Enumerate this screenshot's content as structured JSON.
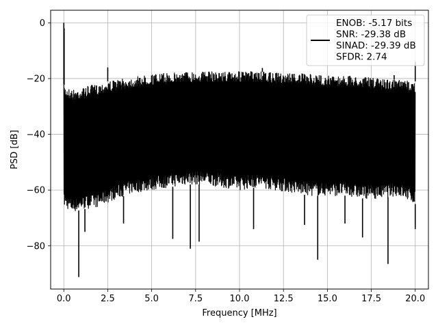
{
  "chart_data": {
    "type": "line",
    "title": "",
    "xlabel": "Frequency [MHz]",
    "ylabel": "PSD [dB]",
    "xlim": [
      -0.75,
      20.75
    ],
    "ylim": [
      -95.5,
      4.5
    ],
    "grid": true,
    "legend_position": "top-right",
    "x_ticks": [
      0.0,
      2.5,
      5.0,
      7.5,
      10.0,
      12.5,
      15.0,
      17.5,
      20.0
    ],
    "x_tick_labels": [
      "0.0",
      "2.5",
      "5.0",
      "7.5",
      "10.0",
      "12.5",
      "15.0",
      "17.5",
      "20.0"
    ],
    "y_ticks": [
      0,
      -20,
      -40,
      -60,
      -80
    ],
    "y_tick_labels": [
      "0",
      "−20",
      "−40",
      "−60",
      "−80"
    ],
    "series": [
      {
        "name": "ENOB: -5.17 bits\nSNR: -29.38 dB\nSINAD: -29.39 dB\nSFDR: 2.74",
        "color": "#000000",
        "upper_envelope": {
          "x": [
            0.0,
            0.1,
            0.5,
            1.0,
            1.5,
            2.0,
            2.5,
            3.0,
            4.0,
            5.0,
            6.0,
            7.0,
            8.0,
            9.0,
            10.0,
            11.0,
            12.0,
            13.0,
            14.0,
            15.0,
            16.0,
            17.0,
            18.0,
            19.0,
            19.9,
            20.0
          ],
          "y": [
            -22,
            -23,
            -24,
            -23.5,
            -22.5,
            -22,
            -21,
            -20.5,
            -19.5,
            -18.5,
            -18,
            -17.5,
            -17.5,
            -17.5,
            -17.5,
            -17.5,
            -18,
            -18,
            -18.5,
            -19,
            -19,
            -19.5,
            -20,
            -20.5,
            -21,
            -21
          ]
        },
        "lower_envelope": {
          "x": [
            0.0,
            0.5,
            1.0,
            2.0,
            3.0,
            4.0,
            5.0,
            6.0,
            7.0,
            8.0,
            9.0,
            10.0,
            11.0,
            12.0,
            13.0,
            14.0,
            15.0,
            16.0,
            17.0,
            18.0,
            19.0,
            20.0
          ],
          "y": [
            -66,
            -68,
            -67,
            -66,
            -63,
            -61,
            -60,
            -59,
            -58,
            -58,
            -59,
            -60,
            -59,
            -60,
            -61,
            -62,
            -62,
            -62,
            -63,
            -63,
            -62,
            -65
          ]
        },
        "peaks": [
          {
            "x": 0.0,
            "y": 0.0
          },
          {
            "x": 0.02,
            "y": -2.0
          },
          {
            "x": 2.5,
            "y": -16.0
          },
          {
            "x": 11.3,
            "y": -16.2
          },
          {
            "x": 18.8,
            "y": -18.8
          },
          {
            "x": 20.0,
            "y": -14.0
          }
        ],
        "dips": [
          {
            "x": 0.85,
            "y": -91.2
          },
          {
            "x": 6.2,
            "y": -77.5
          },
          {
            "x": 7.2,
            "y": -81.0
          },
          {
            "x": 7.7,
            "y": -78.5
          },
          {
            "x": 14.45,
            "y": -85.0
          },
          {
            "x": 18.45,
            "y": -86.5
          },
          {
            "x": 17.0,
            "y": -77.0
          },
          {
            "x": 3.4,
            "y": -72.0
          },
          {
            "x": 1.2,
            "y": -75.0
          },
          {
            "x": 10.8,
            "y": -74.0
          },
          {
            "x": 13.7,
            "y": -72.5
          },
          {
            "x": 16.0,
            "y": -72.0
          },
          {
            "x": 20.0,
            "y": -74.0
          }
        ]
      }
    ],
    "legend_lines": [
      "ENOB: -5.17 bits",
      "SNR: -29.38 dB",
      "SINAD: -29.39 dB",
      "SFDR: 2.74"
    ]
  }
}
